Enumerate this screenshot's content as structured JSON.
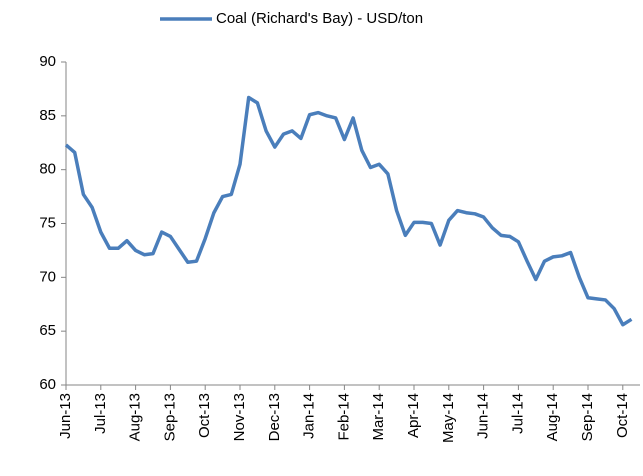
{
  "chart_data": {
    "type": "line",
    "categories": [
      "Jun-13",
      null,
      null,
      null,
      "Jul-13",
      null,
      null,
      null,
      "Aug-13",
      null,
      null,
      null,
      "Sep-13",
      null,
      null,
      null,
      "Oct-13",
      null,
      null,
      null,
      "Nov-13",
      null,
      null,
      null,
      "Dec-13",
      null,
      null,
      null,
      "Jan-14",
      null,
      null,
      null,
      "Feb-14",
      null,
      null,
      null,
      "Mar-14",
      null,
      null,
      null,
      "Apr-14",
      null,
      null,
      null,
      "May-14",
      null,
      null,
      null,
      "Jun-14",
      null,
      null,
      null,
      "Jul-14",
      null,
      null,
      null,
      "Aug-14",
      null,
      null,
      null,
      "Sep-14",
      null,
      null,
      null,
      "Oct-14",
      null
    ],
    "series": [
      {
        "name": "Coal (Richard's Bay) - USD/ton",
        "color": "#4a7ebb",
        "values": [
          82.3,
          81.6,
          77.7,
          76.5,
          74.2,
          72.7,
          72.7,
          73.4,
          72.5,
          72.1,
          72.2,
          74.2,
          73.8,
          72.6,
          71.4,
          71.5,
          73.6,
          76.0,
          77.5,
          77.7,
          80.5,
          86.7,
          86.2,
          83.6,
          82.1,
          83.3,
          83.6,
          82.9,
          85.1,
          85.3,
          85.0,
          84.8,
          82.8,
          84.8,
          81.8,
          80.2,
          80.5,
          79.6,
          76.2,
          73.9,
          75.1,
          75.1,
          75.0,
          73.0,
          75.3,
          76.2,
          76.0,
          75.9,
          75.6,
          74.6,
          73.9,
          73.8,
          73.3,
          71.5,
          69.8,
          71.5,
          71.9,
          72.0,
          72.3,
          70.0,
          68.1,
          68.0,
          67.9,
          67.1,
          65.6,
          66.1
        ]
      }
    ],
    "ylim": [
      60,
      90
    ],
    "yticks": [
      60,
      65,
      70,
      75,
      80,
      85,
      90
    ],
    "legend": "top",
    "grid": false
  }
}
